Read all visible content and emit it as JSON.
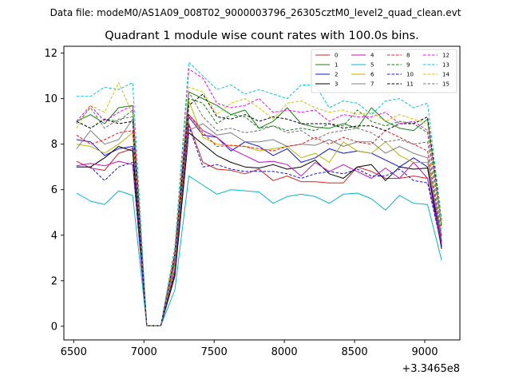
{
  "chart_data": {
    "type": "line",
    "suptitle": "Data file: modeM0/AS1A09_008T02_9000003796_26305cztM0_level2_quad_clean.evt",
    "title": "Quadrant 1 module wise count rates with 100.0s bins.",
    "xlabel": "",
    "ylabel": "",
    "x_offset_text": "+3.3465e8",
    "xlim": [
      6430,
      9250
    ],
    "ylim": [
      -0.6,
      12.3
    ],
    "xticks": [
      6500,
      7000,
      7500,
      8000,
      8500,
      9000
    ],
    "xtick_labels": [
      "6500",
      "7000",
      "7500",
      "8000",
      "8500",
      "9000"
    ],
    "yticks": [
      0,
      2,
      4,
      6,
      8,
      10,
      12
    ],
    "ytick_labels": [
      "0",
      "2",
      "4",
      "6",
      "8",
      "10",
      "12"
    ],
    "legend_position": "top-right",
    "x": [
      6520,
      6620,
      6720,
      6820,
      6920,
      7020,
      7120,
      7220,
      7320,
      7420,
      7520,
      7620,
      7720,
      7820,
      7920,
      8020,
      8120,
      8220,
      8320,
      8420,
      8520,
      8620,
      8720,
      8820,
      8920,
      9020,
      9120
    ],
    "series": [
      {
        "name": "0",
        "color": "#d62020",
        "dash": "solid",
        "values": [
          7.25,
          6.95,
          6.85,
          7.6,
          7.8,
          0.02,
          0.02,
          2.3,
          8.9,
          7.2,
          6.9,
          6.85,
          6.7,
          6.9,
          6.4,
          6.6,
          6.35,
          6.35,
          6.3,
          6.3,
          7.0,
          6.8,
          6.5,
          6.5,
          6.6,
          6.5,
          3.5
        ]
      },
      {
        "name": "1",
        "color": "#158015",
        "dash": "solid",
        "values": [
          9.0,
          9.3,
          8.9,
          9.6,
          9.7,
          0.02,
          0.02,
          3.2,
          10.3,
          10.0,
          9.7,
          9.3,
          9.5,
          8.7,
          9.0,
          9.6,
          8.9,
          8.75,
          8.7,
          8.9,
          8.7,
          9.6,
          9.0,
          8.7,
          8.6,
          9.1,
          4.4
        ]
      },
      {
        "name": "2",
        "color": "#1010e0",
        "dash": "solid",
        "values": [
          8.2,
          8.1,
          7.5,
          7.8,
          7.9,
          0.02,
          0.02,
          2.8,
          9.2,
          8.4,
          8.3,
          7.7,
          8.1,
          7.9,
          7.5,
          7.8,
          7.2,
          7.4,
          7.8,
          7.6,
          7.7,
          7.6,
          7.3,
          7.0,
          7.4,
          7.0,
          3.7
        ]
      },
      {
        "name": "3",
        "color": "#000000",
        "dash": "solid",
        "values": [
          7.0,
          7.0,
          7.4,
          7.9,
          7.7,
          0.02,
          0.02,
          2.2,
          8.5,
          8.0,
          7.5,
          7.2,
          7.0,
          6.95,
          7.1,
          6.9,
          7.0,
          7.3,
          6.7,
          6.5,
          7.0,
          7.1,
          6.4,
          7.0,
          6.9,
          6.95,
          3.4
        ]
      },
      {
        "name": "4",
        "color": "#c010c0",
        "dash": "solid",
        "values": [
          7.05,
          7.15,
          7.05,
          7.25,
          7.1,
          0.02,
          0.02,
          2.5,
          9.3,
          8.6,
          8.3,
          7.8,
          7.5,
          7.2,
          7.25,
          7.1,
          6.6,
          7.2,
          6.8,
          7.1,
          6.8,
          6.5,
          6.95,
          6.5,
          7.2,
          6.5,
          3.6
        ]
      },
      {
        "name": "5",
        "color": "#00b8c8",
        "dash": "solid",
        "values": [
          5.85,
          5.5,
          5.35,
          5.95,
          5.75,
          0.02,
          0.02,
          1.6,
          6.6,
          6.2,
          5.8,
          6.0,
          5.95,
          5.9,
          5.4,
          5.7,
          5.8,
          5.7,
          5.4,
          5.8,
          5.85,
          5.6,
          5.1,
          5.75,
          5.4,
          5.35,
          2.9
        ]
      },
      {
        "name": "6",
        "color": "#b8b800",
        "dash": "solid",
        "values": [
          8.0,
          7.9,
          7.6,
          8.0,
          8.5,
          0.02,
          0.02,
          2.7,
          9.9,
          8.3,
          8.0,
          7.95,
          7.9,
          7.7,
          7.8,
          7.9,
          7.4,
          7.6,
          7.2,
          8.1,
          7.7,
          7.6,
          8.1,
          7.5,
          7.2,
          7.2,
          4.0
        ]
      },
      {
        "name": "7",
        "color": "#808080",
        "dash": "solid",
        "values": [
          7.8,
          8.6,
          8.0,
          8.2,
          9.1,
          0.02,
          0.02,
          3.0,
          8.6,
          8.9,
          8.4,
          8.5,
          8.1,
          8.1,
          8.2,
          7.9,
          8.0,
          7.95,
          8.2,
          7.9,
          8.1,
          8.1,
          7.6,
          7.9,
          7.6,
          7.4,
          3.8
        ]
      },
      {
        "name": "8",
        "color": "#ff1010",
        "dash": "dashed",
        "values": [
          8.4,
          8.0,
          8.2,
          8.5,
          8.6,
          0.02,
          0.02,
          2.9,
          9.3,
          8.5,
          7.9,
          7.95,
          7.9,
          7.8,
          7.7,
          7.9,
          8.0,
          8.3,
          8.0,
          8.3,
          8.1,
          8.0,
          8.6,
          8.3,
          8.0,
          7.7,
          3.9
        ]
      },
      {
        "name": "9",
        "color": "#158015",
        "dash": "dashed",
        "values": [
          9.0,
          8.7,
          9.1,
          9.0,
          9.5,
          0.02,
          0.02,
          3.1,
          10.0,
          9.8,
          8.9,
          9.3,
          9.2,
          8.7,
          8.8,
          8.6,
          8.7,
          8.6,
          8.9,
          8.8,
          9.5,
          9.0,
          8.8,
          9.0,
          8.9,
          8.5,
          4.3
        ]
      },
      {
        "name": "10",
        "color": "#1010e0",
        "dash": "dashed",
        "values": [
          7.0,
          7.0,
          6.4,
          7.0,
          7.2,
          0.02,
          0.02,
          2.4,
          8.8,
          7.0,
          7.1,
          6.9,
          6.8,
          6.8,
          6.8,
          6.7,
          6.5,
          6.7,
          6.8,
          6.7,
          6.9,
          6.6,
          6.6,
          6.9,
          6.4,
          6.3,
          3.5
        ]
      },
      {
        "name": "11",
        "color": "#000000",
        "dash": "dashed",
        "values": [
          9.0,
          8.7,
          9.1,
          8.9,
          9.0,
          0.02,
          0.02,
          3.2,
          9.7,
          10.2,
          9.2,
          9.1,
          9.3,
          9.0,
          9.2,
          9.1,
          8.9,
          8.9,
          8.9,
          8.7,
          8.8,
          8.8,
          8.6,
          8.9,
          8.9,
          9.2,
          4.6
        ]
      },
      {
        "name": "12",
        "color": "#ff00ff",
        "dash": "dashed",
        "values": [
          9.0,
          9.7,
          9.0,
          9.4,
          9.7,
          0.02,
          0.02,
          3.3,
          11.3,
          10.9,
          9.8,
          9.6,
          9.7,
          10.0,
          9.4,
          9.5,
          9.4,
          9.5,
          9.0,
          9.3,
          9.2,
          9.2,
          9.4,
          8.9,
          9.0,
          8.6,
          4.5
        ]
      },
      {
        "name": "13",
        "color": "#00c8d8",
        "dash": "dashed",
        "values": [
          10.1,
          10.1,
          10.5,
          10.4,
          10.7,
          0.02,
          0.02,
          3.5,
          11.6,
          11.0,
          10.4,
          10.6,
          10.2,
          10.4,
          10.2,
          10.0,
          10.6,
          10.6,
          9.6,
          9.9,
          9.8,
          9.3,
          9.9,
          10.0,
          9.6,
          9.8,
          4.7
        ]
      },
      {
        "name": "14",
        "color": "#c8c800",
        "dash": "dashed",
        "values": [
          8.7,
          9.7,
          9.4,
          10.7,
          9.3,
          0.02,
          0.02,
          3.2,
          10.5,
          10.3,
          9.3,
          9.8,
          10.0,
          9.6,
          9.1,
          9.8,
          9.9,
          9.6,
          9.4,
          9.5,
          9.3,
          9.4,
          9.0,
          9.3,
          9.1,
          8.9,
          4.5
        ]
      },
      {
        "name": "15",
        "color": "#707070",
        "dash": "dashed",
        "values": [
          8.9,
          9.6,
          8.7,
          9.1,
          9.2,
          0.02,
          0.02,
          3.1,
          10.3,
          9.2,
          8.6,
          8.7,
          8.5,
          8.6,
          8.8,
          8.5,
          8.6,
          8.2,
          8.5,
          8.6,
          8.7,
          8.5,
          8.1,
          8.2,
          8.0,
          8.1,
          4.0
        ]
      }
    ]
  }
}
